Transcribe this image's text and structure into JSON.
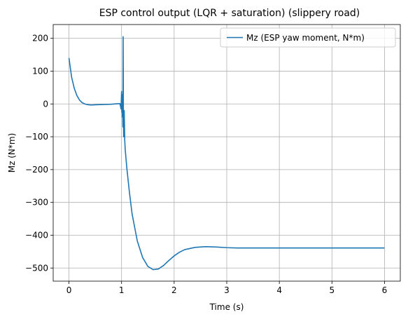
{
  "chart_data": {
    "type": "line",
    "title": "ESP control output (LQR + saturation) (slippery road)",
    "xlabel": "Time (s)",
    "ylabel": "Mz (N*m)",
    "xlim": [
      -0.3,
      6.3
    ],
    "ylim": [
      -540,
      242
    ],
    "xticks": [
      0,
      1,
      2,
      3,
      4,
      5,
      6
    ],
    "xtick_labels": [
      "0",
      "1",
      "2",
      "3",
      "4",
      "5",
      "6"
    ],
    "yticks": [
      200,
      100,
      0,
      -100,
      -200,
      -300,
      -400,
      -500
    ],
    "ytick_labels": [
      "200",
      "100",
      "0",
      "−100",
      "−200",
      "−300",
      "−400",
      "−500"
    ],
    "grid": true,
    "legend_position": "top-right",
    "series": [
      {
        "name": "Mz (ESP yaw moment, N*m)",
        "color": "#1f77b4",
        "x": [
          0,
          0.05,
          0.1,
          0.15,
          0.2,
          0.25,
          0.3,
          0.35,
          0.4,
          0.45,
          0.5,
          0.6,
          0.7,
          0.8,
          0.9,
          0.97,
          0.99,
          1.0,
          1.005,
          1.01,
          1.015,
          1.02,
          1.025,
          1.03,
          1.035,
          1.04,
          1.045,
          1.05,
          1.055,
          1.06,
          1.07,
          1.1,
          1.15,
          1.2,
          1.3,
          1.4,
          1.5,
          1.6,
          1.7,
          1.8,
          1.9,
          2.0,
          2.1,
          2.2,
          2.4,
          2.6,
          2.8,
          3.0,
          3.2,
          3.4,
          3.6,
          3.8,
          4.0,
          4.5,
          5.0,
          5.5,
          6.0
        ],
        "y": [
          140,
          82,
          48,
          26,
          12,
          4,
          0,
          -2,
          -3,
          -3,
          -2.5,
          -2,
          -1.5,
          -1,
          0.5,
          1,
          -15,
          38,
          -25,
          28,
          -40,
          10,
          -70,
          205,
          -30,
          -100,
          -30,
          -20,
          -60,
          -110,
          -140,
          -195,
          -270,
          -335,
          -418,
          -468,
          -495,
          -505,
          -503,
          -492,
          -477,
          -463,
          -452,
          -444,
          -437,
          -435,
          -436,
          -438,
          -439,
          -439,
          -439,
          -439,
          -439,
          -439,
          -439,
          -439,
          -439
        ]
      }
    ]
  }
}
